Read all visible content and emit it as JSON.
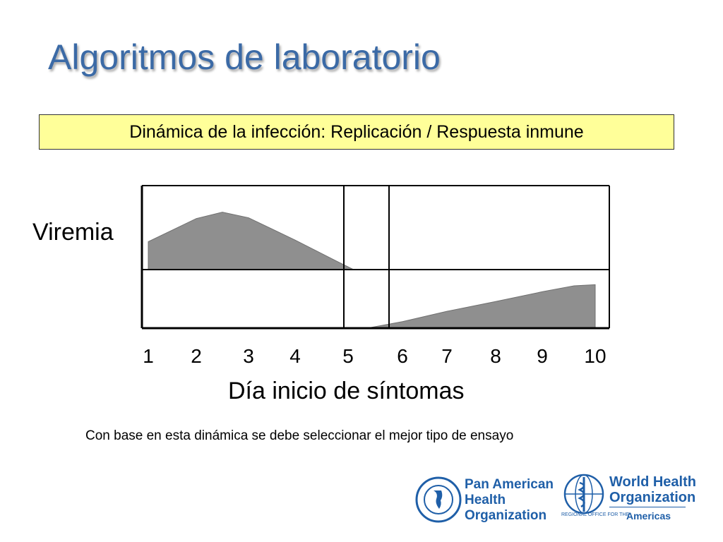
{
  "slide": {
    "title": "Algoritmos de laboratorio",
    "subtitle": "Dinámica de la infección: Replicación / Respuesta inmune",
    "note": "Con base en esta dinámica se debe seleccionar el mejor tipo de ensayo"
  },
  "logos": {
    "paho": {
      "line1": "Pan American",
      "line2": "Health",
      "line3": "Organization",
      "seal_text": "PRO SALUTE NOVI MUNDI"
    },
    "who": {
      "line1": "World Health",
      "line2": "Organization",
      "line3_prefix": "REGIONAL OFFICE FOR THE",
      "line3": "Americas"
    }
  },
  "colors": {
    "title": "#3b6aa6",
    "subtitle_bg": "#ffff99",
    "fill": "#8f8f8f",
    "logo": "#1f5fa8"
  },
  "chart_data": {
    "type": "area",
    "xlabel": "Día inicio de síntomas",
    "row_labels": [
      "Viremia",
      ""
    ],
    "x": [
      1,
      2,
      3,
      4,
      5,
      6,
      7,
      8,
      9,
      10
    ],
    "x_tick_labels": [
      "1",
      "2",
      "3",
      "4",
      "5",
      "6",
      "7",
      "8",
      "9",
      "10"
    ],
    "xlim": [
      1,
      10
    ],
    "ylim": [
      0,
      1
    ],
    "marker_days": [
      5,
      6
    ],
    "series": [
      {
        "row": 0,
        "points": [
          [
            1,
            0.35
          ],
          [
            2,
            0.64
          ],
          [
            2.5,
            0.72
          ],
          [
            3,
            0.65
          ],
          [
            4,
            0.37
          ],
          [
            4.8,
            0.1
          ],
          [
            5.1,
            0.0
          ]
        ]
      },
      {
        "row": 1,
        "points": [
          [
            5.35,
            0.0
          ],
          [
            6,
            0.12
          ],
          [
            7,
            0.31
          ],
          [
            8,
            0.49
          ],
          [
            9,
            0.67
          ],
          [
            9.6,
            0.78
          ],
          [
            10,
            0.8
          ]
        ]
      }
    ]
  }
}
